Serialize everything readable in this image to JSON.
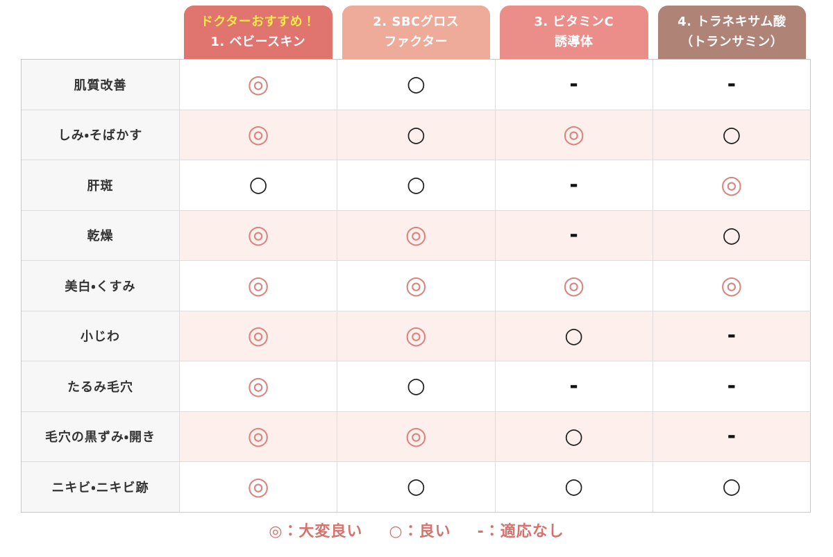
{
  "header": {
    "columns": [
      {
        "line1": "ドクターおすすめ！",
        "line2": "1. ベビースキン",
        "bg": "#e0746f",
        "line1_color": "#f8e84a"
      },
      {
        "line1": "2. SBCグロス",
        "line2": "ファクター",
        "bg": "#eeab9a"
      },
      {
        "line1": "3. ビタミンC",
        "line2": "誘導体",
        "bg": "#eb8e8a"
      },
      {
        "line1": "4. トラネキサム酸",
        "line2": "（トランサミン）",
        "bg": "#b08377"
      }
    ]
  },
  "table": {
    "rows": [
      {
        "label": "肌質改善",
        "cells": [
          "◎",
          "○",
          "-",
          "-"
        ]
      },
      {
        "label": "しみ・そばかす",
        "cells": [
          "◎",
          "○",
          "◎",
          "○"
        ]
      },
      {
        "label": "肝斑",
        "cells": [
          "○",
          "○",
          "-",
          "◎"
        ]
      },
      {
        "label": "乾燥",
        "cells": [
          "◎",
          "◎",
          "-",
          "○"
        ]
      },
      {
        "label": "美白・くすみ",
        "cells": [
          "◎",
          "◎",
          "◎",
          "◎"
        ]
      },
      {
        "label": "小じわ",
        "cells": [
          "◎",
          "◎",
          "○",
          "-"
        ]
      },
      {
        "label": "たるみ毛穴",
        "cells": [
          "◎",
          "○",
          "-",
          "-"
        ]
      },
      {
        "label": "毛穴の黒ずみ・開き",
        "cells": [
          "◎",
          "◎",
          "○",
          "-"
        ]
      },
      {
        "label": "ニキビ・ニキビ跡",
        "cells": [
          "◎",
          "○",
          "○",
          "○"
        ]
      }
    ]
  },
  "legend": {
    "items": [
      "◎：大変良い",
      "○：良い",
      "-：適応なし"
    ]
  },
  "colors": {
    "tab1_bg": "#e0746f",
    "tab1_badge_text": "#f8e84a",
    "tab2_bg": "#eeab9a",
    "tab3_bg": "#eb8e8a",
    "tab4_bg": "#b08377",
    "stripe_row_bg": "#fdf0ec",
    "label_column_bg": "#f8f7f7",
    "double_circle": "#d8867f",
    "circle": "#222222",
    "legend_text": "#d3736d",
    "border": "#dedcdc"
  }
}
